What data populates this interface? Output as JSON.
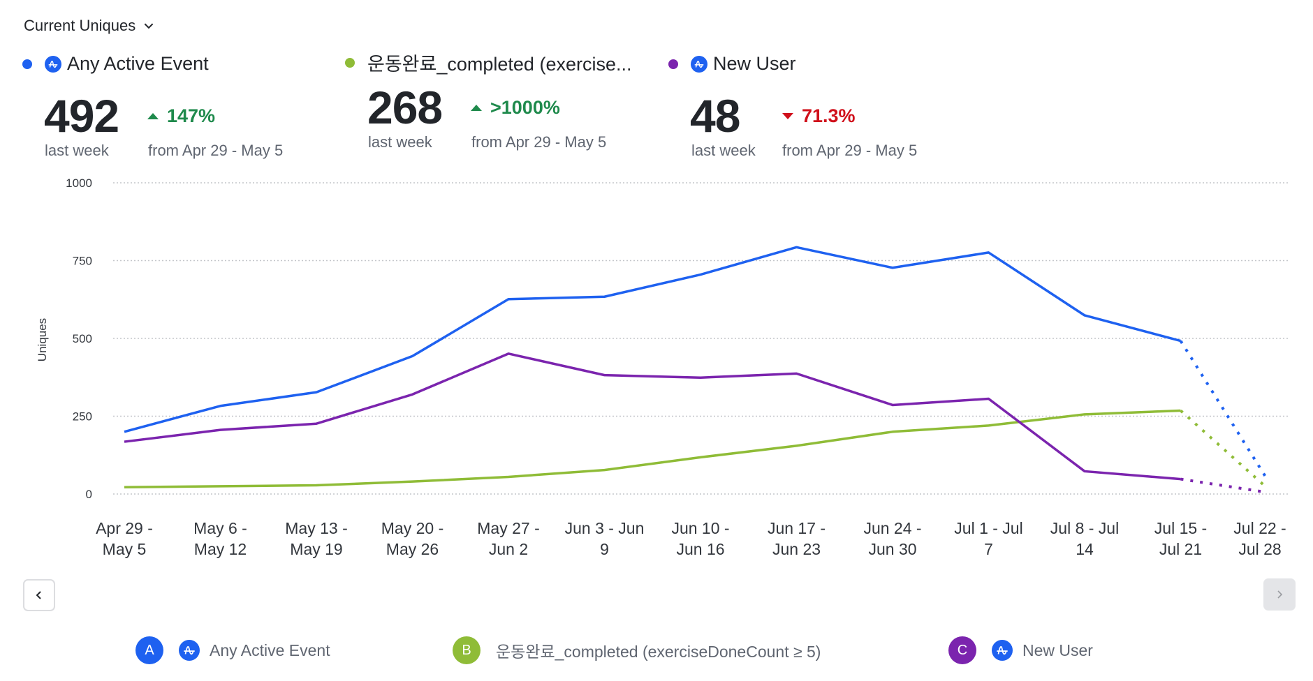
{
  "metric_selector": {
    "label": "Current Uniques",
    "icon": "chevron-down-icon"
  },
  "series_summary": [
    {
      "name": "Any Active Event",
      "color": "#1e61f0",
      "has_amp_icon": true,
      "value": "492",
      "period": "last week",
      "delta": "147%",
      "direction": "up",
      "comparison": "from Apr 29 - May 5"
    },
    {
      "name": "운동완료_completed (exercise...",
      "color": "#8fbc37",
      "has_amp_icon": false,
      "value": "268",
      "period": "last week",
      "delta": ">1000%",
      "direction": "up",
      "comparison": "from Apr 29 - May 5"
    },
    {
      "name": "New User",
      "color": "#7b24ae",
      "has_amp_icon": true,
      "value": "48",
      "period": "last week",
      "delta": "71.3%",
      "direction": "down",
      "comparison": "from Apr 29 - May 5"
    }
  ],
  "chart_data": {
    "type": "line",
    "title": "",
    "xlabel": "",
    "ylabel": "Uniques",
    "ylim": [
      0,
      1000
    ],
    "yticks": [
      0,
      250,
      500,
      750,
      1000
    ],
    "grid": true,
    "categories": [
      [
        "Apr 29 -",
        "May 5"
      ],
      [
        "May 6 -",
        "May 12"
      ],
      [
        "May 13 -",
        "May 19"
      ],
      [
        "May 20 -",
        "May 26"
      ],
      [
        "May 27 -",
        "Jun 2"
      ],
      [
        "Jun 3 - Jun",
        "9"
      ],
      [
        "Jun 10 -",
        "Jun 16"
      ],
      [
        "Jun 17 -",
        "Jun 23"
      ],
      [
        "Jun 24 -",
        "Jun 30"
      ],
      [
        "Jul 1 - Jul",
        "7"
      ],
      [
        "Jul 8 - Jul",
        "14"
      ],
      [
        "Jul 15 -",
        "Jul 21"
      ],
      [
        "Jul 22 -",
        "Jul 28"
      ]
    ],
    "incomplete_last_period": true,
    "series": [
      {
        "key": "A",
        "name": "Any Active Event",
        "color": "#1e61f0",
        "values": [
          200,
          283,
          327,
          443,
          626,
          634,
          705,
          793,
          727,
          776,
          574,
          492,
          45
        ]
      },
      {
        "key": "B",
        "name": "운동완료_completed (exerciseDoneCount ≥ 5)",
        "color": "#8fbc37",
        "values": [
          22,
          25,
          28,
          40,
          55,
          77,
          118,
          155,
          200,
          220,
          256,
          268,
          18
        ]
      },
      {
        "key": "C",
        "name": "New User",
        "color": "#7b24ae",
        "values": [
          168,
          206,
          226,
          320,
          451,
          382,
          374,
          387,
          286,
          306,
          73,
          48,
          5
        ]
      }
    ]
  },
  "navigation": {
    "prev_icon": "chevron-left-icon",
    "next_icon": "chevron-right-icon",
    "next_disabled": true
  },
  "legend": [
    {
      "letter": "A",
      "label": "Any Active Event",
      "color": "#1e61f0",
      "has_amp_icon": true
    },
    {
      "letter": "B",
      "label": "운동완료_completed (exerciseDoneCount ≥ 5)",
      "color": "#8fbc37",
      "has_amp_icon": false
    },
    {
      "letter": "C",
      "label": "New User",
      "color": "#7b24ae",
      "has_amp_icon": true
    }
  ]
}
